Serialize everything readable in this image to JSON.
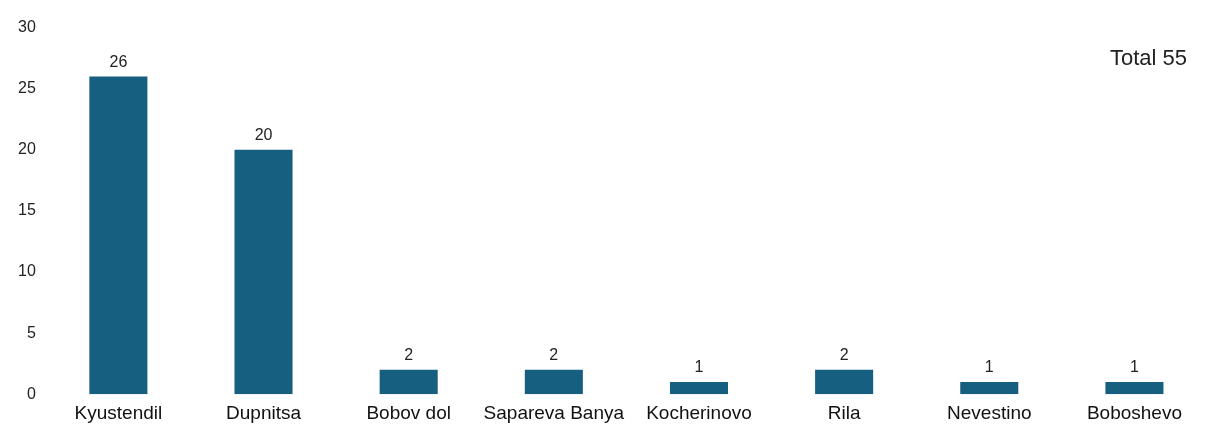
{
  "chart_data": {
    "type": "bar",
    "categories": [
      "Kyustendil",
      "Dupnitsa",
      "Bobov dol",
      "Sapareva Banya",
      "Kocherinovo",
      "Rila",
      "Nevestino",
      "Boboshevo"
    ],
    "values": [
      26,
      20,
      2,
      2,
      1,
      2,
      1,
      1
    ],
    "color": "#175f80",
    "ylim": [
      0,
      30
    ],
    "yticks": [
      0,
      5,
      10,
      15,
      20,
      25,
      30
    ],
    "grid": false,
    "data_labels": true,
    "annotations": [
      "Total 55"
    ]
  }
}
